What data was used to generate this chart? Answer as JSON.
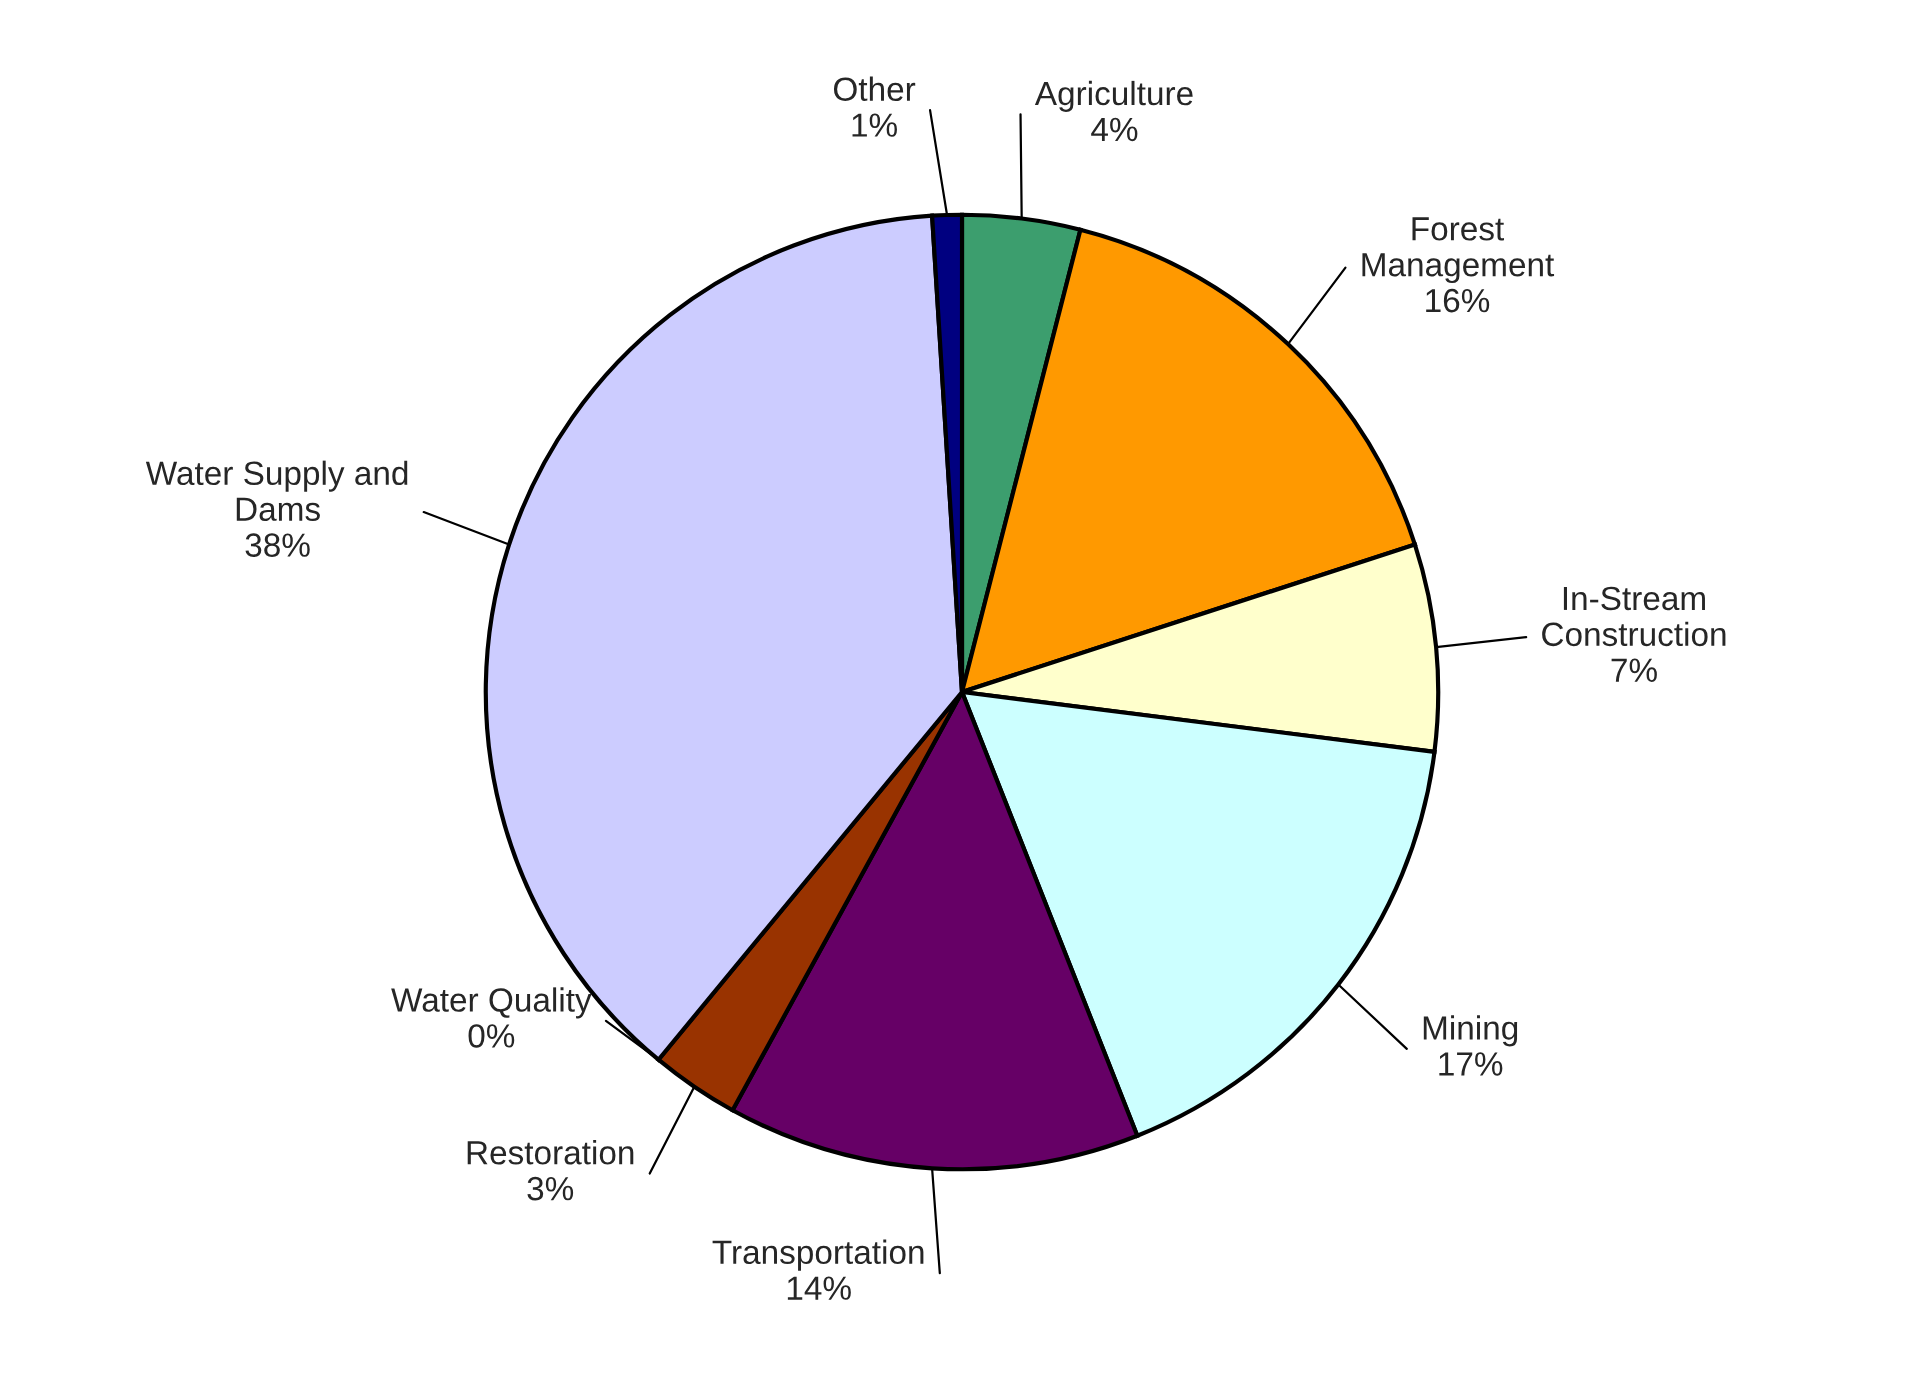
{
  "chart_data": {
    "type": "pie",
    "categories": [
      "Agriculture",
      "Forest\nManagement",
      "In-Stream\nConstruction",
      "Mining",
      "Transportation",
      "Restoration",
      "Water Quality",
      "Water Supply and\nDams",
      "Other"
    ],
    "values": [
      4,
      16,
      7,
      17,
      14,
      3,
      0,
      38,
      1
    ],
    "value_labels": [
      "4%",
      "16%",
      "7%",
      "17%",
      "14%",
      "3%",
      "0%",
      "38%",
      "1%"
    ],
    "colors": [
      "#3c9e6e",
      "#ff9900",
      "#ffffcc",
      "#ccffff",
      "#660066",
      "#993300",
      "#ffff00",
      "#ccccff",
      "#000080"
    ]
  }
}
